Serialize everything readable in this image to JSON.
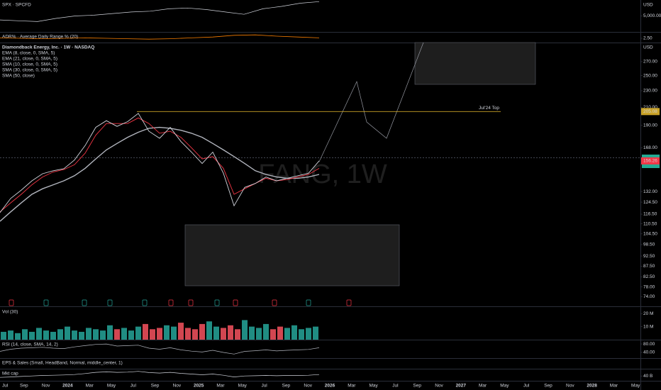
{
  "chart_data": [
    {
      "type": "line",
      "title": "SPX · SPCFD",
      "currency": "USD",
      "color": "#d1d4dc",
      "values": [
        4500,
        4400,
        4300,
        4700,
        5000,
        5100,
        5300,
        5500,
        5600,
        5900,
        6000,
        5800,
        5500,
        5200,
        5900,
        6200,
        6600,
        6800
      ],
      "ylim": [
        3000,
        7000
      ],
      "yticks": [
        {
          "value": 5000,
          "label": "5,000.00"
        }
      ]
    },
    {
      "type": "line",
      "title": "ADR% · Average Daily Range % (20)",
      "color": "#f57c00",
      "values": [
        2.6,
        2.5,
        2.4,
        2.5,
        2.6,
        2.5,
        2.4,
        2.3,
        2.4,
        2.6,
        2.8,
        3.2,
        3.3,
        3.0,
        2.8,
        2.6
      ],
      "ylim": [
        1.5,
        4
      ],
      "yticks": [
        {
          "value": 2.5,
          "label": "2.50"
        }
      ]
    },
    {
      "type": "line",
      "title": "Diamondback Energy, Inc. · 1W · NASDAQ",
      "watermark": "FANG, 1W",
      "currency": "USD",
      "log_scale": true,
      "series": [
        {
          "color": "#d1d4dc",
          "values": [
            117.5,
            127,
            133,
            140,
            145.6,
            148,
            149.6,
            157,
            170,
            188,
            195,
            189,
            194,
            203,
            184,
            177,
            188,
            174,
            164,
            154,
            164,
            146,
            122,
            135,
            138,
            143,
            140,
            142,
            144,
            146,
            156.26
          ]
        },
        {
          "name": "EMA (8, close, 0, SMA, 5)",
          "color": "#f23645",
          "values": [
            118,
            124,
            130,
            137,
            143,
            147,
            149,
            153,
            163,
            180,
            192,
            192,
            192,
            198,
            192,
            182,
            184,
            178,
            168,
            158,
            160,
            150,
            130,
            134,
            138,
            142,
            140,
            141,
            143,
            145,
            150
          ]
        },
        {
          "name": "SMA (30, close, 0, SMA, 5)",
          "color": "#b2b5be",
          "values": [
            112,
            118,
            124,
            130,
            134,
            137,
            140,
            144,
            150,
            158,
            166,
            172,
            178,
            183,
            187,
            188,
            187,
            185,
            182,
            178,
            172,
            166,
            160,
            154,
            148,
            145,
            143,
            142,
            142,
            143,
            145
          ]
        }
      ],
      "indicators": [
        "EMA (21, close, 0, SMA, 5)",
        "SMA (10, close, 0, SMA, 5)",
        "SMA (50, close)"
      ],
      "level": {
        "label": "Jul'24 Top",
        "value": 205.08
      },
      "ylim": [
        70.1,
        300
      ],
      "yticks": [
        {
          "value": 270,
          "label": "270.00"
        },
        {
          "value": 250,
          "label": "250.00"
        },
        {
          "value": 230,
          "label": "230.00"
        },
        {
          "value": 210,
          "label": "210.00"
        },
        {
          "value": 190,
          "label": "190.00"
        },
        {
          "value": 168,
          "label": "168.00"
        },
        {
          "value": 132,
          "label": "132.00"
        },
        {
          "value": 124.5,
          "label": "124.50"
        },
        {
          "value": 116.5,
          "label": "116.50"
        },
        {
          "value": 110.5,
          "label": "110.50"
        },
        {
          "value": 104.5,
          "label": "104.50"
        },
        {
          "value": 98.5,
          "label": "98.50"
        },
        {
          "value": 92.5,
          "label": "92.50"
        },
        {
          "value": 87.5,
          "label": "87.50"
        },
        {
          "value": 82.5,
          "label": "82.50"
        },
        {
          "value": 78,
          "label": "78.00"
        },
        {
          "value": 74,
          "label": "74.00"
        }
      ],
      "x_labels": [
        "Jul",
        "Sep",
        "Nov",
        "2024",
        "Mar",
        "May",
        "Jul",
        "Sep",
        "Nov",
        "2025",
        "Mar",
        "May",
        "Jul",
        "Sep",
        "Nov",
        "2026",
        "Mar",
        "May",
        "Jul",
        "Sep",
        "Nov",
        "2027",
        "Mar",
        "May",
        "Jul",
        "Sep",
        "Nov",
        "2028",
        "Mar",
        "May"
      ]
    },
    {
      "type": "bar",
      "title": "Vol (30)",
      "values": [
        6,
        7,
        5,
        8,
        6,
        9,
        7,
        6,
        8,
        10,
        7,
        6,
        9,
        8,
        7,
        11,
        8,
        9,
        7,
        10,
        12,
        8,
        9,
        11,
        10,
        13,
        9,
        8,
        12,
        14,
        10,
        9,
        11,
        8,
        15,
        10,
        9,
        12,
        8,
        10,
        9,
        11,
        8,
        9,
        10
      ],
      "up_color": "#26a69a",
      "down_color": "#f7525f",
      "ylim": [
        0,
        25
      ],
      "yticks": [
        {
          "value": 20,
          "label": "20 M"
        },
        {
          "value": 10,
          "label": "10 M"
        }
      ]
    },
    {
      "type": "line",
      "title": "RSI (14, close, SMA, 14, 2)",
      "color": "#b2b5be",
      "values": [
        45,
        55,
        60,
        62,
        64,
        60,
        58,
        66,
        72,
        78,
        80,
        70,
        72,
        74,
        60,
        55,
        62,
        52,
        46,
        42,
        50,
        40,
        32,
        45,
        48,
        52,
        47,
        50,
        52,
        54,
        62
      ],
      "ylim": [
        13,
        97
      ],
      "yticks": [
        {
          "value": 80,
          "label": "80.00"
        },
        {
          "value": 40,
          "label": "40.00"
        }
      ]
    },
    {
      "type": "text",
      "title": "EPS & Sales (Small, HeadBand, Normal, middle_center, 1)"
    },
    {
      "type": "line",
      "title": "Mkt cap",
      "color": "#d1d4dc",
      "values": [
        34,
        36,
        38,
        40,
        42,
        43,
        44,
        46,
        50,
        55,
        57,
        55,
        56,
        59,
        54,
        52,
        55,
        51,
        48,
        45,
        48,
        43,
        36,
        40,
        41,
        42,
        41,
        42,
        42,
        43,
        46
      ],
      "ylim": [
        20,
        70
      ],
      "yticks": [
        {
          "value": 40,
          "label": "40 B"
        }
      ]
    }
  ]
}
